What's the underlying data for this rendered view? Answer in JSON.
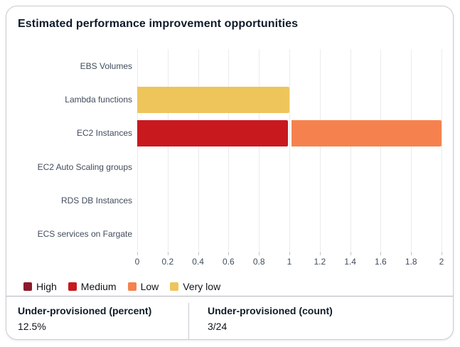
{
  "card": {
    "title": "Estimated performance improvement opportunities"
  },
  "chart_data": {
    "type": "bar",
    "orientation": "horizontal",
    "stacked": true,
    "title": "Estimated performance improvement opportunities",
    "categories": [
      "EBS Volumes",
      "Lambda functions",
      "EC2 Instances",
      "EC2 Auto Scaling groups",
      "RDS DB Instances",
      "ECS services on Fargate"
    ],
    "series": [
      {
        "name": "High",
        "color": "#8b1a2b",
        "values": [
          0,
          0,
          0,
          0,
          0,
          0
        ]
      },
      {
        "name": "Medium",
        "color": "#c8191f",
        "values": [
          0,
          0,
          1,
          0,
          0,
          0
        ]
      },
      {
        "name": "Low",
        "color": "#f5824e",
        "values": [
          0,
          0,
          1,
          0,
          0,
          0
        ]
      },
      {
        "name": "Very low",
        "color": "#edc55b",
        "values": [
          0,
          1,
          0,
          0,
          0,
          0
        ]
      }
    ],
    "xlim": [
      0,
      2
    ],
    "x_ticks": [
      0,
      0.2,
      0.4,
      0.6,
      0.8,
      1,
      1.2,
      1.4,
      1.6,
      1.8,
      2
    ],
    "x_tick_labels": [
      "0",
      "0.2",
      "0.4",
      "0.6",
      "0.8",
      "1",
      "1.2",
      "1.4",
      "1.6",
      "1.8",
      "2"
    ],
    "xlabel": "",
    "ylabel": "",
    "grid": true,
    "gridline_color": "#e9ebed",
    "legend_position": "bottom",
    "legend_entries": [
      "High",
      "Medium",
      "Low",
      "Very low"
    ]
  },
  "footer": {
    "metrics": [
      {
        "label": "Under-provisioned (percent)",
        "value": "12.5%"
      },
      {
        "label": "Under-provisioned (count)",
        "value": "3/24"
      }
    ]
  }
}
